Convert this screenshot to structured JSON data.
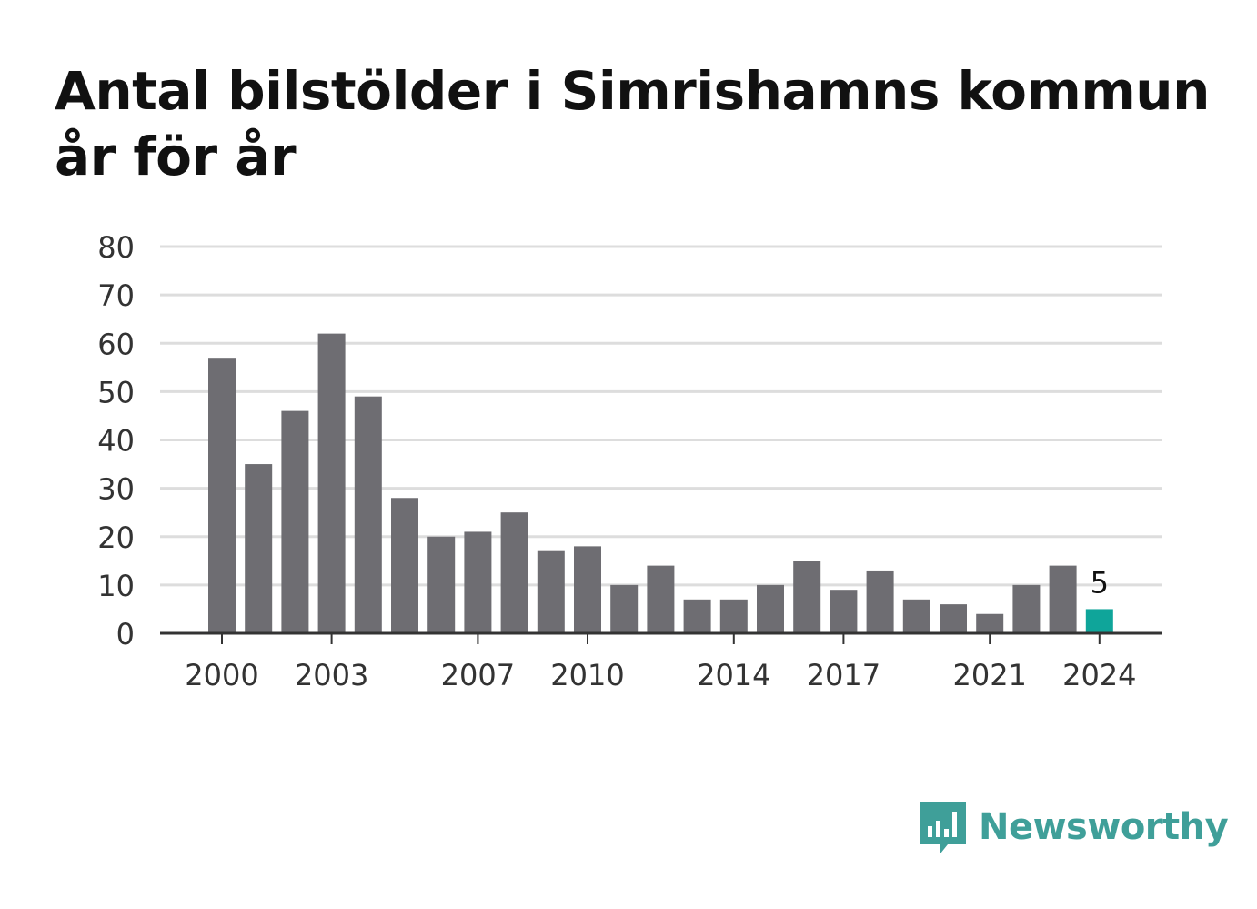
{
  "title_line1": "Antal bilstölder i Simrishamns kommun",
  "title_line2": "år för år",
  "chart_data": {
    "type": "bar",
    "title": "Antal bilstölder i Simrishamns kommun år för år",
    "categories": [
      2000,
      2001,
      2002,
      2003,
      2004,
      2005,
      2006,
      2007,
      2008,
      2009,
      2010,
      2011,
      2012,
      2013,
      2014,
      2015,
      2016,
      2017,
      2018,
      2019,
      2020,
      2021,
      2022,
      2023,
      2024
    ],
    "values": [
      57,
      35,
      46,
      62,
      49,
      28,
      20,
      21,
      25,
      17,
      18,
      10,
      14,
      7,
      7,
      10,
      15,
      9,
      13,
      7,
      6,
      4,
      10,
      14,
      5
    ],
    "x_ticks": [
      2000,
      2003,
      2007,
      2010,
      2014,
      2017,
      2021,
      2024
    ],
    "y_ticks": [
      0,
      10,
      20,
      30,
      40,
      50,
      60,
      70,
      80
    ],
    "ylim": [
      0,
      80
    ],
    "grid": true,
    "highlight": {
      "category": 2024,
      "label": "5"
    },
    "colors": {
      "bar": "#6e6d72",
      "highlight": "#0fa59a",
      "grid": "#dddddd",
      "axis": "#333333"
    }
  },
  "brand": {
    "name": "Newsworthy",
    "color": "#3f9f99",
    "icon": "speech-bubble-bar-chart-icon"
  }
}
